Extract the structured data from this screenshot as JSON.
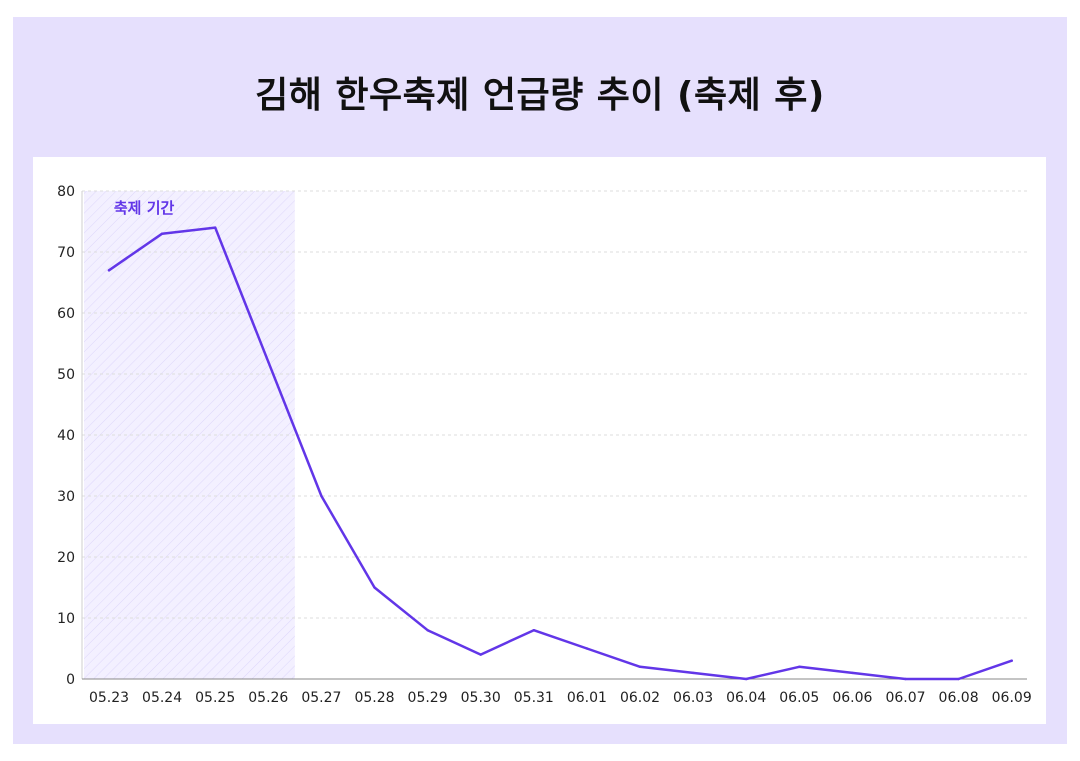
{
  "page": {
    "title": "김해 한우축제 언급량 추이 (축제 후)"
  },
  "colors": {
    "frame_bg": "#e6e0fd",
    "line": "#6236e8",
    "band_label": "#6236e8",
    "band_fill": "#f3f0ff",
    "band_hatch": "#ddd6fb",
    "grid": "#dedede",
    "axis": "#888888"
  },
  "chart_data": {
    "type": "line",
    "categories": [
      "05.23",
      "05.24",
      "05.25",
      "05.26",
      "05.27",
      "05.28",
      "05.29",
      "05.30",
      "05.31",
      "06.01",
      "06.02",
      "06.03",
      "06.04",
      "06.05",
      "06.06",
      "06.07",
      "06.08",
      "06.09"
    ],
    "series": [
      {
        "values": [
          67,
          73,
          74,
          52,
          30,
          15,
          8,
          4,
          8,
          5,
          2,
          1,
          0,
          2,
          1,
          0,
          0,
          3
        ]
      }
    ],
    "ylim": [
      0,
      80
    ],
    "yticks": [
      0,
      10,
      20,
      30,
      40,
      50,
      60,
      70,
      80
    ],
    "grid": true,
    "highlight_band": {
      "label": "축제 기간",
      "start": "05.23",
      "end": "05.26"
    }
  }
}
